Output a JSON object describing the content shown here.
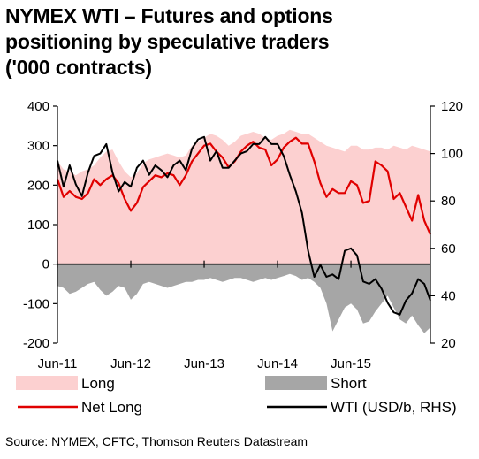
{
  "title_lines": [
    "NYMEX WTI – Futures and options",
    "positioning by speculative traders",
    "('000 contracts)"
  ],
  "source": "Source: NYMEX, CFTC, Thomson Reuters Datastream",
  "colors": {
    "long": "#fcd0d0",
    "short": "#a6a6a6",
    "net_long": "#e00000",
    "wti": "#000000"
  },
  "chart_data": {
    "type": "area",
    "x_unit": "months since Jan-2011",
    "x": [
      5,
      6,
      7,
      8,
      9,
      10,
      11,
      12,
      13,
      14,
      15,
      16,
      17,
      18,
      19,
      20,
      21,
      22,
      23,
      24,
      25,
      26,
      27,
      28,
      29,
      30,
      31,
      32,
      33,
      34,
      35,
      36,
      37,
      38,
      39,
      40,
      41,
      42,
      43,
      44,
      45,
      46,
      47,
      48,
      49,
      50,
      51,
      52,
      53,
      54,
      55,
      56,
      57,
      58,
      59,
      60,
      61,
      62,
      63,
      64,
      65,
      66
    ],
    "x_tick_labels": [
      "Jun-11",
      "Jun-12",
      "Jun-13",
      "Jun-14",
      "Jun-15"
    ],
    "x_tick_positions": [
      5,
      17,
      29,
      41,
      53
    ],
    "xlim": [
      5,
      66
    ],
    "ylim_left": [
      -200,
      400
    ],
    "yticks_left": [
      -200,
      -100,
      0,
      100,
      200,
      300,
      400
    ],
    "ylim_right": [
      20,
      120
    ],
    "yticks_right": [
      20,
      40,
      60,
      80,
      100,
      120
    ],
    "series": [
      {
        "name": "Long",
        "axis": "left",
        "values": [
          260,
          240,
          235,
          225,
          235,
          240,
          250,
          270,
          285,
          290,
          260,
          235,
          220,
          230,
          255,
          265,
          270,
          275,
          280,
          275,
          270,
          275,
          300,
          310,
          320,
          330,
          325,
          315,
          300,
          310,
          325,
          330,
          335,
          330,
          320,
          315,
          325,
          330,
          340,
          335,
          330,
          330,
          320,
          310,
          300,
          295,
          290,
          285,
          300,
          300,
          290,
          290,
          295,
          295,
          290,
          300,
          295,
          290,
          300,
          295,
          290,
          285
        ]
      },
      {
        "name": "Short",
        "axis": "left",
        "values": [
          -55,
          -60,
          -75,
          -70,
          -60,
          -50,
          -45,
          -65,
          -80,
          -70,
          -55,
          -60,
          -90,
          -75,
          -50,
          -45,
          -50,
          -55,
          -60,
          -55,
          -50,
          -45,
          -45,
          -40,
          -40,
          -35,
          -40,
          -45,
          -40,
          -35,
          -35,
          -40,
          -45,
          -40,
          -35,
          -40,
          -35,
          -30,
          -25,
          -30,
          -40,
          -35,
          -45,
          -60,
          -100,
          -170,
          -140,
          -110,
          -100,
          -115,
          -150,
          -145,
          -120,
          -100,
          -80,
          -110,
          -140,
          -150,
          -130,
          -155,
          -175,
          -160
        ]
      },
      {
        "name": "Net Long",
        "axis": "left",
        "values": [
          215,
          170,
          185,
          170,
          165,
          180,
          215,
          200,
          215,
          225,
          205,
          165,
          135,
          155,
          195,
          210,
          225,
          220,
          230,
          225,
          200,
          225,
          260,
          280,
          300,
          305,
          285,
          270,
          245,
          260,
          285,
          300,
          310,
          295,
          290,
          250,
          265,
          295,
          310,
          320,
          305,
          305,
          260,
          205,
          170,
          190,
          180,
          180,
          210,
          200,
          155,
          160,
          260,
          250,
          235,
          165,
          180,
          145,
          110,
          175,
          110,
          75
        ]
      },
      {
        "name": "WTI (USD/b, RHS)",
        "axis": "right",
        "values": [
          97,
          86,
          95,
          87,
          82,
          92,
          99,
          100,
          104,
          92,
          84,
          88,
          86,
          94,
          97,
          91,
          95,
          93,
          90,
          95,
          97,
          93,
          102,
          106,
          107,
          97,
          101,
          94,
          94,
          97,
          100,
          101,
          104,
          104,
          107,
          104,
          104,
          99,
          91,
          84,
          75,
          59,
          48,
          53,
          48,
          49,
          47,
          59,
          60,
          57,
          46,
          45,
          47,
          43,
          37,
          33,
          32,
          38,
          41,
          47,
          45,
          38
        ]
      }
    ],
    "legend": [
      {
        "label": "Long",
        "swatch": "area",
        "color_key": "long"
      },
      {
        "label": "Short",
        "swatch": "area",
        "color_key": "short"
      },
      {
        "label": "Net Long",
        "swatch": "line",
        "color_key": "net_long"
      },
      {
        "label": "WTI (USD/b, RHS)",
        "swatch": "line",
        "color_key": "wti"
      }
    ],
    "legend_position": "bottom",
    "grid": false
  }
}
